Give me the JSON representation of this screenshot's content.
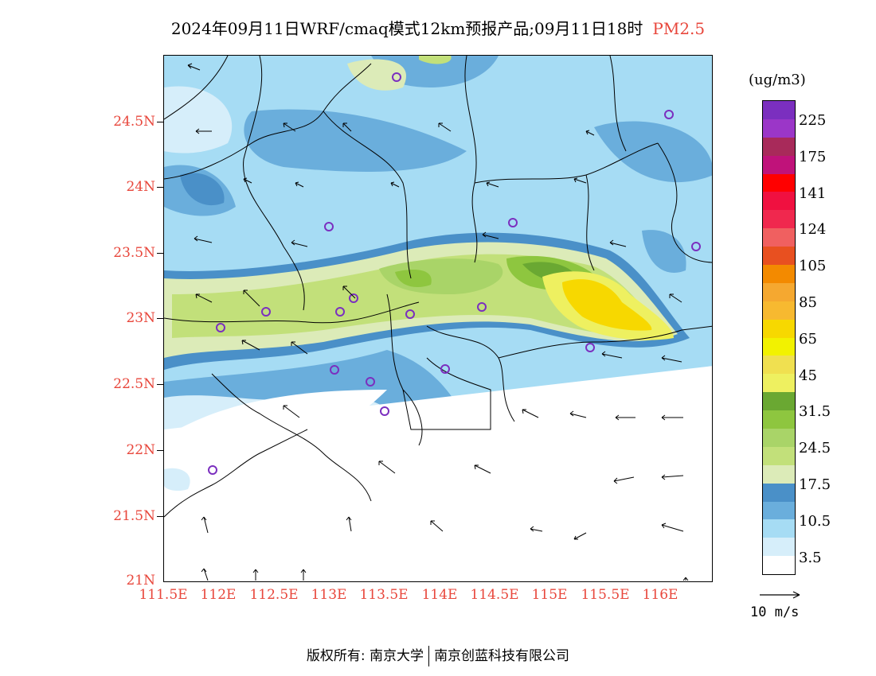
{
  "title": {
    "main": "2024年09月11日WRF/cmaq模式12km预报产品;09月11日18时",
    "pollutant": "PM2.5"
  },
  "axes": {
    "lat_labels": [
      "24.5N",
      "24N",
      "23.5N",
      "23N",
      "22.5N",
      "22N",
      "21.5N",
      "21N"
    ],
    "lon_labels": [
      "111.5E",
      "112E",
      "112.5E",
      "113E",
      "113.5E",
      "114E",
      "114.5E",
      "115E",
      "115.5E",
      "116E"
    ],
    "label_color": "#e8473c"
  },
  "colorbar": {
    "unit": "(ug/m3)",
    "labels": [
      "225",
      "175",
      "141",
      "124",
      "105",
      "85",
      "65",
      "45",
      "31.5",
      "24.5",
      "17.5",
      "10.5",
      "3.5"
    ],
    "colors": [
      "#7b2fbf",
      "#9b36c8",
      "#a82a5a",
      "#c0127a",
      "#ff0000",
      "#f01040",
      "#f0284e",
      "#f06060",
      "#e85020",
      "#f38a00",
      "#f5a830",
      "#f7b930",
      "#f7d800",
      "#f2f200",
      "#f0e050",
      "#eef060",
      "#6aa832",
      "#8ec63f",
      "#a9d468",
      "#c2e07a",
      "#dcebb8",
      "#4a90c8",
      "#6aaedc",
      "#a6dcf4",
      "#d6eefa",
      "#ffffff"
    ]
  },
  "wind_reference": {
    "label": "10 m/s"
  },
  "monitoring_sites": 17,
  "footer": {
    "left": "版权所有: 南京大学",
    "right": "南京创蓝科技有限公司"
  }
}
